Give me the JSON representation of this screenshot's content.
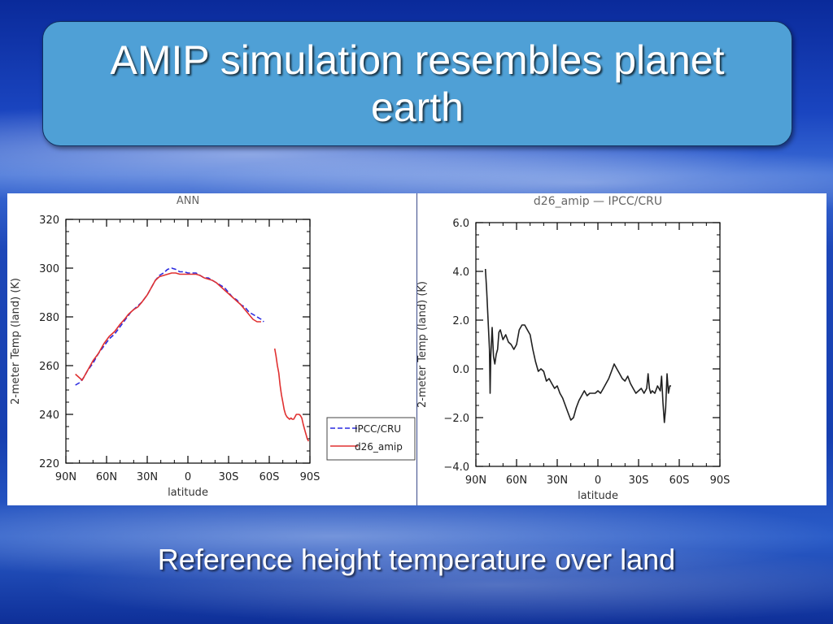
{
  "slide": {
    "title": "AMIP simulation resembles planet earth",
    "caption": "Reference height temperature over land"
  },
  "chart_data": [
    {
      "type": "line",
      "title": "ANN",
      "xlabel": "latitude",
      "ylabel": "2-meter Temp (land) (K)",
      "xlim": [
        90,
        -90
      ],
      "ylim": [
        220,
        320
      ],
      "xticks": [
        "90N",
        "60N",
        "30N",
        "0",
        "30S",
        "60S",
        "90S"
      ],
      "xtick_values": [
        90,
        60,
        30,
        0,
        -30,
        -60,
        -90
      ],
      "yticks": [
        "220",
        "240",
        "260",
        "280",
        "300",
        "320"
      ],
      "ytick_values": [
        220,
        240,
        260,
        280,
        300,
        320
      ],
      "legend": "outside-lower-right",
      "series": [
        {
          "name": "IPCC/CRU",
          "color": "#2a2ae0",
          "dash": true,
          "segments": [
            [
              [
                83,
                252
              ],
              [
                80,
                253
              ],
              [
                77,
                255
              ],
              [
                74,
                258
              ],
              [
                70,
                261
              ],
              [
                66,
                265
              ],
              [
                62,
                268
              ],
              [
                58,
                271
              ],
              [
                54,
                273
              ],
              [
                50,
                276
              ],
              [
                46,
                279
              ],
              [
                42,
                282
              ],
              [
                38,
                284
              ],
              [
                34,
                286
              ],
              [
                30,
                289
              ],
              [
                27,
                292
              ],
              [
                24,
                295
              ],
              [
                21,
                297
              ],
              [
                18,
                298
              ],
              [
                15,
                299.5
              ],
              [
                12,
                300
              ],
              [
                9,
                299.5
              ],
              [
                6,
                298.5
              ],
              [
                3,
                298.5
              ],
              [
                0,
                298
              ],
              [
                -3,
                298
              ],
              [
                -6,
                298
              ],
              [
                -9,
                297
              ],
              [
                -12,
                296
              ],
              [
                -15,
                296
              ],
              [
                -18,
                295
              ],
              [
                -21,
                294
              ],
              [
                -24,
                293
              ],
              [
                -27,
                292
              ],
              [
                -30,
                290
              ],
              [
                -33,
                288
              ],
              [
                -36,
                287
              ],
              [
                -39,
                285
              ],
              [
                -42,
                284
              ],
              [
                -45,
                282
              ],
              [
                -48,
                281
              ],
              [
                -51,
                280
              ],
              [
                -54,
                279
              ],
              [
                -56,
                278
              ]
            ]
          ]
        },
        {
          "name": "d26_amip",
          "color": "#e03030",
          "dash": false,
          "segments": [
            [
              [
                83,
                256.5
              ],
              [
                80,
                255
              ],
              [
                78,
                254
              ],
              [
                76,
                256
              ],
              [
                73,
                259
              ],
              [
                70,
                262
              ],
              [
                66,
                265
              ],
              [
                62,
                269
              ],
              [
                58,
                272
              ],
              [
                54,
                274
              ],
              [
                50,
                277
              ],
              [
                46,
                279.5
              ],
              [
                44,
                281
              ],
              [
                42,
                282
              ],
              [
                40,
                283
              ],
              [
                37,
                284
              ],
              [
                34,
                286
              ],
              [
                30,
                289
              ],
              [
                27,
                292
              ],
              [
                24,
                295
              ],
              [
                21,
                296.5
              ],
              [
                18,
                297
              ],
              [
                15,
                297.5
              ],
              [
                12,
                298
              ],
              [
                9,
                298
              ],
              [
                6,
                297.5
              ],
              [
                3,
                297.5
              ],
              [
                0,
                297.5
              ],
              [
                -3,
                297.5
              ],
              [
                -6,
                297.5
              ],
              [
                -9,
                297
              ],
              [
                -12,
                296
              ],
              [
                -15,
                295.5
              ],
              [
                -18,
                295
              ],
              [
                -21,
                294
              ],
              [
                -24,
                292.5
              ],
              [
                -27,
                291
              ],
              [
                -30,
                289.5
              ],
              [
                -33,
                288
              ],
              [
                -36,
                286.5
              ],
              [
                -39,
                285
              ],
              [
                -42,
                283
              ],
              [
                -45,
                281
              ],
              [
                -48,
                279
              ],
              [
                -51,
                278
              ],
              [
                -54,
                278
              ]
            ],
            [
              [
                -64,
                267
              ],
              [
                -65,
                264
              ],
              [
                -66,
                260
              ],
              [
                -67,
                257
              ],
              [
                -68,
                252
              ],
              [
                -69,
                248
              ],
              [
                -70,
                245
              ],
              [
                -71,
                242
              ],
              [
                -72,
                240
              ],
              [
                -73,
                239
              ],
              [
                -74,
                238.5
              ],
              [
                -75,
                238
              ],
              [
                -76,
                238.5
              ],
              [
                -77,
                238
              ],
              [
                -78,
                238
              ],
              [
                -79,
                239
              ],
              [
                -80,
                240
              ],
              [
                -81,
                240
              ],
              [
                -82,
                240
              ],
              [
                -83,
                239.5
              ],
              [
                -84,
                238.5
              ],
              [
                -85,
                236
              ],
              [
                -86,
                234
              ],
              [
                -87,
                232
              ],
              [
                -88,
                230
              ],
              [
                -89,
                229
              ]
            ]
          ]
        }
      ]
    },
    {
      "type": "line",
      "title": "d26_amip — IPCC/CRU",
      "xlabel": "latitude",
      "ylabel": "2-meter Temp (land) (K)",
      "xlim": [
        90,
        -90
      ],
      "ylim": [
        -4,
        6
      ],
      "xticks": [
        "90N",
        "60N",
        "30N",
        "0",
        "30S",
        "60S",
        "90S"
      ],
      "xtick_values": [
        90,
        60,
        30,
        0,
        -30,
        -60,
        -90
      ],
      "yticks": [
        "−4.0",
        "−2.0",
        "0.0",
        "2.0",
        "4.0",
        "6.0"
      ],
      "ytick_values": [
        -4,
        -2,
        0,
        2,
        4,
        6
      ],
      "series": [
        {
          "color": "#202020",
          "dash": false,
          "segments": [
            [
              [
                83,
                4.1
              ],
              [
                82,
                3.2
              ],
              [
                81,
                2.0
              ],
              [
                80,
                0.8
              ],
              [
                79.5,
                -1.0
              ],
              [
                79,
                0.5
              ],
              [
                78,
                1.7
              ],
              [
                77,
                0.5
              ],
              [
                76,
                0.2
              ],
              [
                75,
                0.6
              ],
              [
                74,
                0.8
              ],
              [
                73,
                1.5
              ],
              [
                72,
                1.6
              ],
              [
                70,
                1.2
              ],
              [
                68,
                1.4
              ],
              [
                66,
                1.1
              ],
              [
                64,
                1.0
              ],
              [
                62,
                0.8
              ],
              [
                60,
                1.0
              ],
              [
                58,
                1.6
              ],
              [
                56,
                1.8
              ],
              [
                54,
                1.8
              ],
              [
                52,
                1.6
              ],
              [
                50,
                1.4
              ],
              [
                48,
                0.8
              ],
              [
                46,
                0.3
              ],
              [
                44,
                -0.1
              ],
              [
                42,
                0.0
              ],
              [
                40,
                -0.1
              ],
              [
                38,
                -0.5
              ],
              [
                36,
                -0.4
              ],
              [
                34,
                -0.6
              ],
              [
                32,
                -0.8
              ],
              [
                30,
                -0.7
              ],
              [
                28,
                -1.0
              ],
              [
                26,
                -1.2
              ],
              [
                24,
                -1.5
              ],
              [
                22,
                -1.8
              ],
              [
                20,
                -2.1
              ],
              [
                18,
                -2.0
              ],
              [
                16,
                -1.6
              ],
              [
                14,
                -1.3
              ],
              [
                12,
                -1.1
              ],
              [
                10,
                -0.9
              ],
              [
                8,
                -1.1
              ],
              [
                6,
                -1.0
              ],
              [
                4,
                -1.0
              ],
              [
                2,
                -1.0
              ],
              [
                0,
                -0.9
              ],
              [
                -2,
                -1.0
              ],
              [
                -4,
                -0.8
              ],
              [
                -6,
                -0.6
              ],
              [
                -8,
                -0.4
              ],
              [
                -10,
                -0.1
              ],
              [
                -12,
                0.2
              ],
              [
                -14,
                0.0
              ],
              [
                -16,
                -0.2
              ],
              [
                -18,
                -0.4
              ],
              [
                -20,
                -0.5
              ],
              [
                -22,
                -0.3
              ],
              [
                -24,
                -0.6
              ],
              [
                -26,
                -0.8
              ],
              [
                -28,
                -1.0
              ],
              [
                -30,
                -0.9
              ],
              [
                -32,
                -0.8
              ],
              [
                -34,
                -1.0
              ],
              [
                -36,
                -0.8
              ],
              [
                -37,
                -0.2
              ],
              [
                -38,
                -0.8
              ],
              [
                -39,
                -1.0
              ],
              [
                -40,
                -0.9
              ],
              [
                -42,
                -1.0
              ],
              [
                -44,
                -0.7
              ],
              [
                -46,
                -0.9
              ],
              [
                -47,
                -0.3
              ],
              [
                -48,
                -1.4
              ],
              [
                -49,
                -2.2
              ],
              [
                -50,
                -1.6
              ],
              [
                -51,
                -0.2
              ],
              [
                -52,
                -1.0
              ],
              [
                -53,
                -0.7
              ],
              [
                -54,
                -0.7
              ]
            ]
          ]
        }
      ]
    }
  ]
}
